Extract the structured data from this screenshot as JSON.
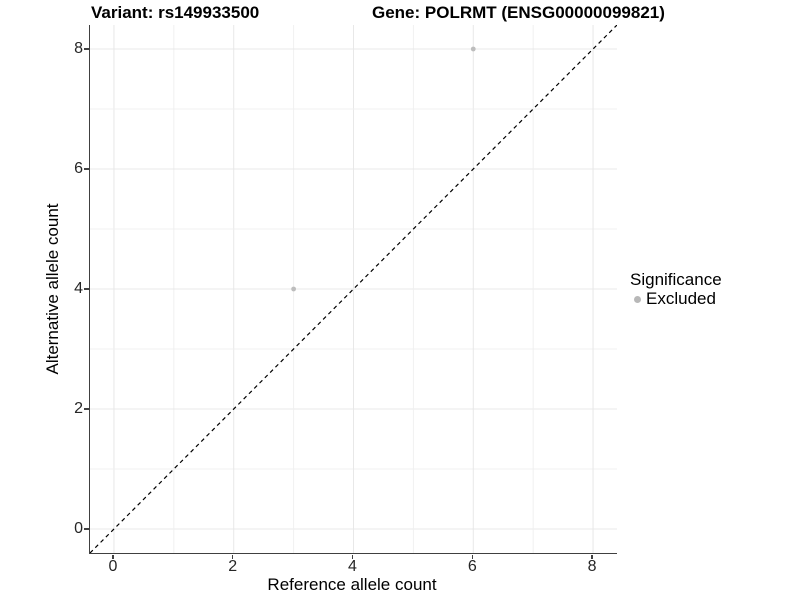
{
  "titles": {
    "variant": "Variant: rs149933500",
    "gene": "Gene: POLRMT (ENSG00000099821)"
  },
  "legend": {
    "title": "Significance",
    "items": [
      {
        "label": "Excluded",
        "color": "#b8b8b8"
      }
    ]
  },
  "chart_data": {
    "type": "scatter",
    "xlabel": "Reference allele count",
    "ylabel": "Alternative allele count",
    "xlim": [
      -0.4,
      8.4
    ],
    "ylim": [
      -0.4,
      8.4
    ],
    "xticks": [
      0,
      2,
      4,
      6,
      8
    ],
    "yticks": [
      0,
      2,
      4,
      6,
      8
    ],
    "grid": {
      "every": 1,
      "major_color": "#e8e8e8",
      "minor_color": "#f0f0f0"
    },
    "reference_line": {
      "equation": "y = x",
      "style": "dashed",
      "color": "#000000"
    },
    "series": [
      {
        "name": "Excluded",
        "color": "#bdbdbd",
        "points": [
          {
            "x": 3,
            "y": 4
          },
          {
            "x": 6,
            "y": 8
          }
        ]
      }
    ],
    "legend_position": "right"
  }
}
